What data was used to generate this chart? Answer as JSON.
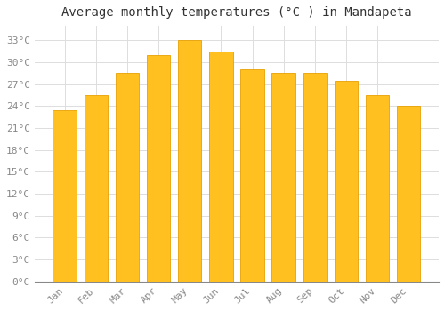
{
  "title": "Average monthly temperatures (°C ) in Mandapeta",
  "months": [
    "Jan",
    "Feb",
    "Mar",
    "Apr",
    "May",
    "Jun",
    "Jul",
    "Aug",
    "Sep",
    "Oct",
    "Nov",
    "Dec"
  ],
  "values": [
    23.5,
    25.5,
    28.5,
    31.0,
    33.0,
    31.5,
    29.0,
    28.5,
    28.5,
    27.5,
    25.5,
    24.0
  ],
  "bar_color_face": "#FFC020",
  "bar_color_edge": "#E8A000",
  "background_color": "#FFFFFF",
  "grid_color": "#DDDDDD",
  "ylim": [
    0,
    35
  ],
  "ytick_step": 3,
  "title_fontsize": 10,
  "tick_fontsize": 8,
  "font_family": "monospace"
}
